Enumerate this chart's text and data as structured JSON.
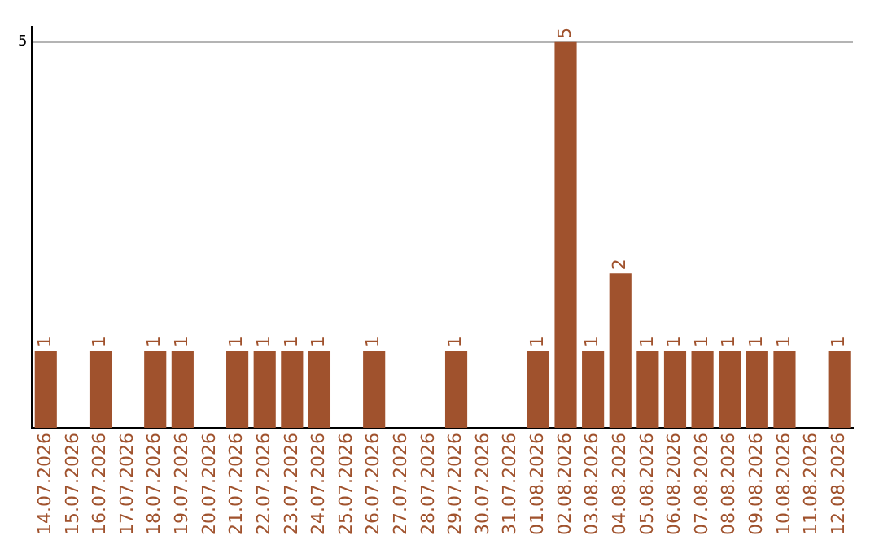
{
  "chart_data": {
    "type": "bar",
    "categories": [
      "14.07.2026",
      "15.07.2026",
      "16.07.2026",
      "17.07.2026",
      "18.07.2026",
      "19.07.2026",
      "20.07.2026",
      "21.07.2026",
      "22.07.2026",
      "23.07.2026",
      "24.07.2026",
      "25.07.2026",
      "26.07.2026",
      "27.07.2026",
      "28.07.2026",
      "29.07.2026",
      "30.07.2026",
      "31.07.2026",
      "01.08.2026",
      "02.08.2026",
      "03.08.2026",
      "04.08.2026",
      "05.08.2026",
      "06.08.2026",
      "07.08.2026",
      "08.08.2026",
      "09.08.2026",
      "10.08.2026",
      "11.08.2026",
      "12.08.2026"
    ],
    "values": [
      1,
      0,
      1,
      0,
      1,
      1,
      0,
      1,
      1,
      1,
      1,
      0,
      1,
      0,
      0,
      1,
      0,
      0,
      1,
      5,
      1,
      2,
      1,
      1,
      1,
      1,
      1,
      1,
      0,
      1
    ],
    "value_labels": [
      "1",
      null,
      "1",
      null,
      "1",
      "1",
      null,
      "1",
      "1",
      "1",
      "1",
      null,
      "1",
      null,
      null,
      "1",
      null,
      null,
      "1",
      "5",
      "1",
      "2",
      "1",
      "1",
      "1",
      "1",
      "1",
      "1",
      null,
      "1"
    ],
    "color": "#a0522d",
    "ylim": [
      0,
      5.2
    ],
    "yticks": [
      5
    ],
    "grid": "y",
    "legend": false
  }
}
